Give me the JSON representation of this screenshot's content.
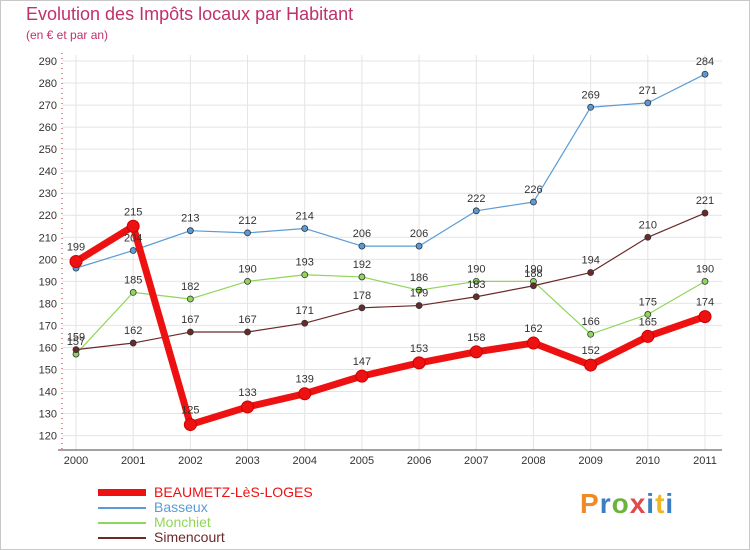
{
  "title": "Evolution des Impôts locaux par Habitant",
  "subtitle": "(en € et par an)",
  "logo": {
    "text": "Proxiti",
    "letter_colors": [
      "#f08a24",
      "#3a7fc4",
      "#6bb33a",
      "#e04a4a",
      "#3a7fc4",
      "#f0b624",
      "#3a7fc4"
    ]
  },
  "chart_data": {
    "type": "line",
    "title": "Evolution des Impôts locaux par Habitant",
    "subtitle": "(en € et par an)",
    "xlabel": "",
    "ylabel": "",
    "categories": [
      "2000",
      "2001",
      "2002",
      "2003",
      "2004",
      "2005",
      "2006",
      "2007",
      "2008",
      "2009",
      "2010",
      "2011"
    ],
    "yticks": [
      120,
      130,
      140,
      150,
      160,
      170,
      180,
      190,
      200,
      210,
      220,
      230,
      240,
      250,
      260,
      270,
      280,
      290
    ],
    "ylim": [
      118,
      290
    ],
    "grid": true,
    "series": [
      {
        "name": "Basseux",
        "color": "#5b9bd5",
        "values": [
          196,
          204,
          213,
          212,
          214,
          206,
          206,
          222,
          226,
          269,
          271,
          284
        ],
        "labels": [
          "",
          "204",
          "213",
          "212",
          "214",
          "206",
          "206",
          "222",
          "226",
          "269",
          "271",
          "284"
        ]
      },
      {
        "name": "Monchiet",
        "color": "#8fd65a",
        "values": [
          157,
          185,
          182,
          190,
          193,
          192,
          186,
          190,
          190,
          166,
          175,
          190
        ],
        "labels": [
          "157",
          "185",
          "182",
          "190",
          "193",
          "192",
          "186",
          "190",
          "190",
          "166",
          "175",
          "190"
        ]
      },
      {
        "name": "Simencourt",
        "color": "#6b2a2a",
        "values": [
          159,
          162,
          167,
          167,
          171,
          178,
          179,
          183,
          188,
          194,
          210,
          221
        ],
        "labels": [
          "159",
          "162",
          "167",
          "167",
          "171",
          "178",
          "179",
          "183",
          "188",
          "194",
          "210",
          "221"
        ]
      },
      {
        "name": "BEAUMETZ-LèS-LOGES",
        "color": "#ee1111",
        "values": [
          199,
          215,
          125,
          133,
          139,
          147,
          153,
          158,
          162,
          152,
          165,
          174
        ],
        "labels": [
          "199",
          "215",
          "125",
          "133",
          "139",
          "147",
          "153",
          "158",
          "162",
          "152",
          "165",
          "174"
        ]
      }
    ],
    "legend": [
      {
        "name": "BEAUMETZ-LèS-LOGES",
        "color": "#ee1111"
      },
      {
        "name": "Basseux",
        "color": "#5b9bd5"
      },
      {
        "name": "Monchiet",
        "color": "#8fd65a"
      },
      {
        "name": "Simencourt",
        "color": "#6b2a2a"
      }
    ]
  }
}
